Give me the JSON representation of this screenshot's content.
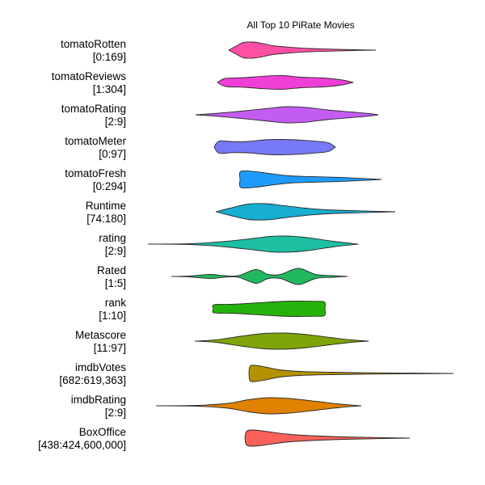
{
  "chart_data": {
    "type": "violin",
    "title": "All Top 10 PiRate Movies",
    "grid": false,
    "legend": "none",
    "x_scale": "each row scaled to its own [min:max] range",
    "series": [
      {
        "name": "tomatoRotten",
        "range": "[0:169]",
        "color": "#FF4FA4",
        "density": [
          [
            0.0,
            0.0
          ],
          [
            0.06,
            0.6
          ],
          [
            0.1,
            0.95
          ],
          [
            0.16,
            1.0
          ],
          [
            0.22,
            0.85
          ],
          [
            0.3,
            0.55
          ],
          [
            0.4,
            0.38
          ],
          [
            0.55,
            0.2
          ],
          [
            0.7,
            0.12
          ],
          [
            0.85,
            0.05
          ],
          [
            1.0,
            0.0
          ]
        ]
      },
      {
        "name": "tomatoReviews",
        "range": "[1:304]",
        "color": "#F03FD7",
        "density": [
          [
            0.0,
            0.0
          ],
          [
            0.06,
            0.5
          ],
          [
            0.2,
            0.6
          ],
          [
            0.35,
            0.78
          ],
          [
            0.48,
            0.85
          ],
          [
            0.62,
            0.65
          ],
          [
            0.78,
            0.55
          ],
          [
            0.92,
            0.3
          ],
          [
            1.0,
            0.0
          ]
        ]
      },
      {
        "name": "tomatoRating",
        "range": "[2:9]",
        "color": "#C35CF3",
        "density": [
          [
            0.0,
            0.0
          ],
          [
            0.1,
            0.15
          ],
          [
            0.25,
            0.45
          ],
          [
            0.4,
            0.8
          ],
          [
            0.5,
            1.0
          ],
          [
            0.6,
            0.92
          ],
          [
            0.72,
            0.6
          ],
          [
            0.85,
            0.35
          ],
          [
            0.95,
            0.15
          ],
          [
            1.0,
            0.0
          ]
        ]
      },
      {
        "name": "tomatoMeter",
        "range": "[0:97]",
        "color": "#7779F7",
        "density": [
          [
            0.0,
            0.0
          ],
          [
            0.04,
            0.75
          ],
          [
            0.15,
            0.68
          ],
          [
            0.28,
            0.7
          ],
          [
            0.42,
            0.9
          ],
          [
            0.55,
            0.95
          ],
          [
            0.7,
            0.88
          ],
          [
            0.84,
            0.72
          ],
          [
            0.94,
            0.55
          ],
          [
            1.0,
            0.0
          ]
        ]
      },
      {
        "name": "tomatoFresh",
        "range": "[0:294]",
        "color": "#1E9CFB",
        "density": [
          [
            0.0,
            0.0
          ],
          [
            0.005,
            1.0
          ],
          [
            0.1,
            0.98
          ],
          [
            0.22,
            0.7
          ],
          [
            0.35,
            0.45
          ],
          [
            0.5,
            0.35
          ],
          [
            0.65,
            0.28
          ],
          [
            0.8,
            0.18
          ],
          [
            0.92,
            0.08
          ],
          [
            1.0,
            0.0
          ]
        ]
      },
      {
        "name": "Runtime",
        "range": "[74:180]",
        "color": "#16AFD1",
        "density": [
          [
            0.0,
            0.0
          ],
          [
            0.08,
            0.45
          ],
          [
            0.18,
            0.95
          ],
          [
            0.28,
            1.0
          ],
          [
            0.38,
            0.75
          ],
          [
            0.5,
            0.45
          ],
          [
            0.62,
            0.25
          ],
          [
            0.8,
            0.12
          ],
          [
            1.0,
            0.0
          ]
        ]
      },
      {
        "name": "rating",
        "range": "[2:9]",
        "color": "#1DBFA3",
        "density": [
          [
            0.0,
            0.0
          ],
          [
            0.2,
            0.05
          ],
          [
            0.35,
            0.3
          ],
          [
            0.5,
            0.7
          ],
          [
            0.58,
            0.95
          ],
          [
            0.66,
            1.0
          ],
          [
            0.76,
            0.8
          ],
          [
            0.88,
            0.35
          ],
          [
            1.0,
            0.0
          ]
        ]
      },
      {
        "name": "Rated",
        "range": "[1:5]",
        "color": "#22B85E",
        "density": [
          [
            0.0,
            0.0
          ],
          [
            0.1,
            0.05
          ],
          [
            0.22,
            0.25
          ],
          [
            0.3,
            0.1
          ],
          [
            0.38,
            0.1
          ],
          [
            0.48,
            0.85
          ],
          [
            0.55,
            0.25
          ],
          [
            0.62,
            0.25
          ],
          [
            0.72,
            1.0
          ],
          [
            0.82,
            0.25
          ],
          [
            0.92,
            0.1
          ],
          [
            1.0,
            0.0
          ]
        ]
      },
      {
        "name": "rank",
        "range": "[1:10]",
        "color": "#24B30A",
        "density": [
          [
            0.0,
            0.0
          ],
          [
            0.005,
            0.5
          ],
          [
            0.15,
            0.55
          ],
          [
            0.3,
            0.65
          ],
          [
            0.45,
            0.78
          ],
          [
            0.6,
            0.9
          ],
          [
            0.75,
            0.95
          ],
          [
            0.9,
            0.92
          ],
          [
            0.995,
            0.85
          ],
          [
            1.0,
            0.0
          ]
        ]
      },
      {
        "name": "Metascore",
        "range": "[11:97]",
        "color": "#7FA40A",
        "density": [
          [
            0.0,
            0.0
          ],
          [
            0.12,
            0.15
          ],
          [
            0.28,
            0.65
          ],
          [
            0.4,
            0.95
          ],
          [
            0.52,
            1.0
          ],
          [
            0.65,
            0.8
          ],
          [
            0.78,
            0.45
          ],
          [
            0.9,
            0.15
          ],
          [
            1.0,
            0.0
          ]
        ]
      },
      {
        "name": "imdbVotes",
        "range": "[682:619,363]",
        "color": "#B39200",
        "density": [
          [
            0.0,
            0.0
          ],
          [
            0.005,
            0.9
          ],
          [
            0.03,
            1.0
          ],
          [
            0.08,
            0.8
          ],
          [
            0.15,
            0.45
          ],
          [
            0.25,
            0.25
          ],
          [
            0.4,
            0.15
          ],
          [
            0.6,
            0.08
          ],
          [
            0.8,
            0.04
          ],
          [
            1.0,
            0.0
          ]
        ]
      },
      {
        "name": "imdbRating",
        "range": "[2:9]",
        "color": "#E08100",
        "density": [
          [
            0.0,
            0.0
          ],
          [
            0.2,
            0.05
          ],
          [
            0.35,
            0.3
          ],
          [
            0.45,
            0.75
          ],
          [
            0.55,
            1.0
          ],
          [
            0.65,
            0.9
          ],
          [
            0.78,
            0.55
          ],
          [
            0.9,
            0.2
          ],
          [
            1.0,
            0.0
          ]
        ]
      },
      {
        "name": "BoxOffice",
        "range": "[438:424,600,000]",
        "color": "#F8625A",
        "density": [
          [
            0.0,
            0.0
          ],
          [
            0.01,
            0.85
          ],
          [
            0.05,
            1.0
          ],
          [
            0.12,
            0.85
          ],
          [
            0.25,
            0.5
          ],
          [
            0.4,
            0.3
          ],
          [
            0.6,
            0.15
          ],
          [
            0.8,
            0.07
          ],
          [
            1.0,
            0.0
          ]
        ]
      }
    ]
  }
}
